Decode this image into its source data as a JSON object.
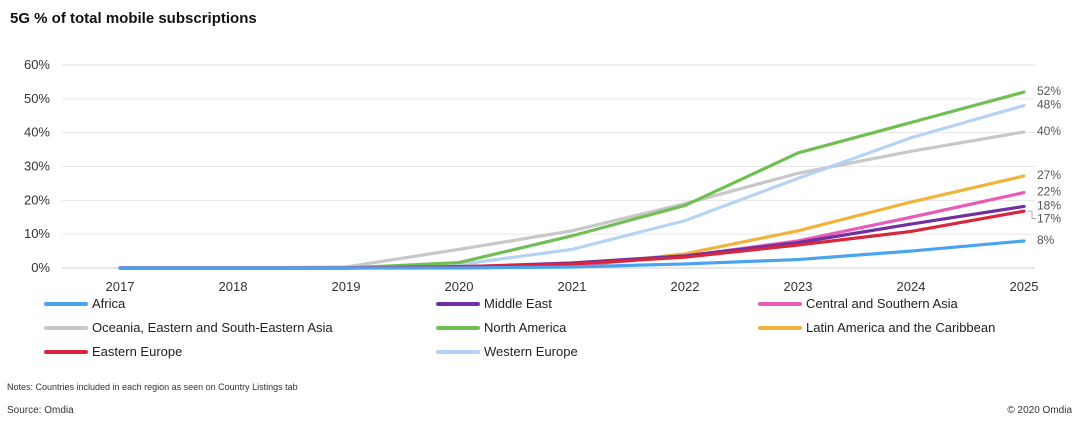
{
  "chart_data": {
    "type": "line",
    "title": "5G % of total mobile subscriptions",
    "x": [
      "2017",
      "2018",
      "2019",
      "2020",
      "2021",
      "2022",
      "2023",
      "2024",
      "2025"
    ],
    "ylim": [
      0,
      60
    ],
    "yticks": [
      "0%",
      "10%",
      "20%",
      "30%",
      "40%",
      "50%",
      "60%"
    ],
    "ytick_values": [
      0,
      10,
      20,
      30,
      40,
      50,
      60
    ],
    "grid": true,
    "legend_position": "bottom",
    "series": [
      {
        "name": "Oceania, Eastern and South-Eastern Asia",
        "color": "#c8c8c8",
        "values": [
          0,
          0,
          0.3,
          5.5,
          11,
          19,
          28,
          34.5,
          40.2
        ],
        "end_label": "40%"
      },
      {
        "name": "Western Europe",
        "color": "#b5d3f3",
        "values": [
          0,
          0,
          0,
          1,
          5.5,
          14,
          26.5,
          38.5,
          48
        ],
        "end_label": "48%"
      },
      {
        "name": "North America",
        "color": "#70bf54",
        "values": [
          0,
          0,
          0,
          1.6,
          9.5,
          18.5,
          34,
          43,
          52
        ],
        "end_label": "52%"
      },
      {
        "name": "Latin America and the Caribbean",
        "color": "#f2b33d",
        "values": [
          0,
          0,
          0,
          0.2,
          0.4,
          4.2,
          11,
          19.5,
          27.2
        ],
        "end_label": "27%"
      },
      {
        "name": "Central and Southern Asia",
        "color": "#e85bb6",
        "values": [
          0,
          0,
          0,
          0.2,
          0.8,
          3.5,
          8,
          15,
          22.3
        ],
        "end_label": "22%"
      },
      {
        "name": "Middle East",
        "color": "#7030a0",
        "values": [
          0,
          0,
          0,
          0.3,
          1.5,
          3.6,
          7.5,
          13,
          18.2
        ],
        "end_label": "18%"
      },
      {
        "name": "Eastern Europe",
        "color": "#d7263d",
        "values": [
          0,
          0,
          0,
          0.4,
          1.2,
          3.2,
          6.8,
          10.8,
          16.8
        ],
        "end_label": "17%"
      },
      {
        "name": "Africa",
        "color": "#4aa3ee",
        "values": [
          0,
          0,
          0,
          0,
          0.3,
          1.2,
          2.5,
          5,
          8
        ],
        "end_label": "8%"
      }
    ],
    "legend_order": [
      "Africa",
      "Middle East",
      "Central and Southern Asia",
      "Oceania, Eastern and South-Eastern Asia",
      "North America",
      "Latin America and the Caribbean",
      "Eastern Europe",
      "Western Europe"
    ]
  },
  "footer": {
    "notes": "Notes: Countries included in each region as seen on Country Listings tab",
    "source": "Source: Omdia",
    "copyright": "© 2020 Omdia"
  }
}
